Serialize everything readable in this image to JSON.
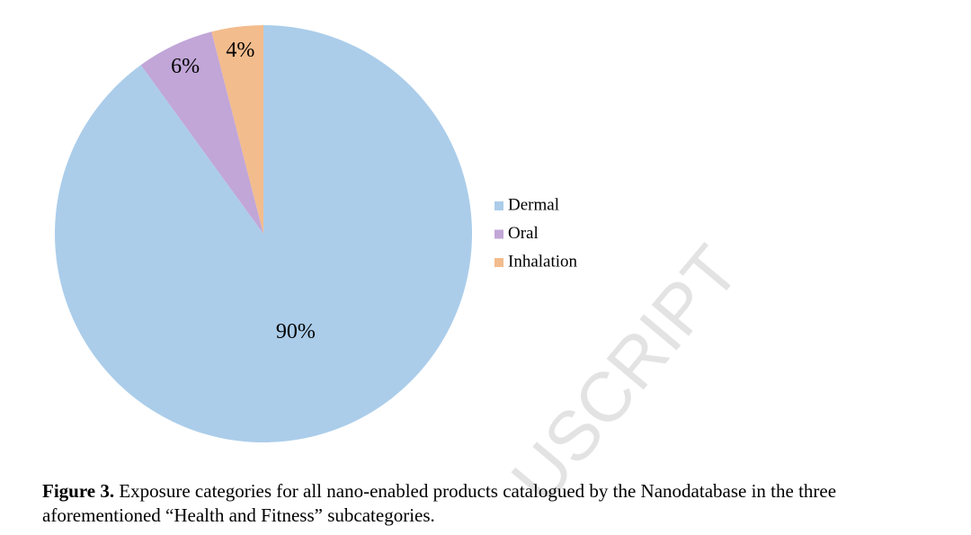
{
  "chart_data": {
    "type": "pie",
    "categories": [
      "Dermal",
      "Oral",
      "Inhalation"
    ],
    "values": [
      90,
      6,
      4
    ],
    "value_labels": [
      "90%",
      "6%",
      "4%"
    ],
    "colors": [
      "#abcdea",
      "#c1a6d7",
      "#f3bc8d"
    ],
    "legend": "right"
  },
  "watermark": "USCRIPT",
  "caption": {
    "label": "Figure 3.",
    "text": " Exposure categories for all nano-enabled products catalogued by the Nanodatabase in the three aforementioned “Health and Fitness” subcategories."
  }
}
